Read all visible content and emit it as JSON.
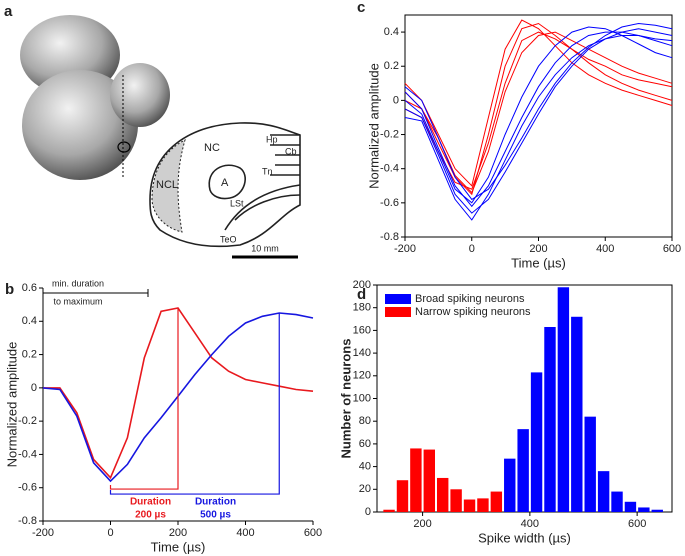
{
  "panel_a": {
    "label": "a",
    "regions": [
      "NC",
      "NCL",
      "A",
      "LSt",
      "Tn",
      "Hp",
      "Cb",
      "TeO"
    ],
    "scale_bar": "10 mm"
  },
  "chart_data": [
    {
      "type": "line",
      "panel_label": "b",
      "xlabel": "Time (µs)",
      "ylabel": "Normalized amplitude",
      "x": [
        -200,
        -150,
        -100,
        -50,
        0,
        50,
        100,
        150,
        200,
        250,
        300,
        350,
        400,
        450,
        500,
        550,
        600
      ],
      "series": [
        {
          "color": "#e8191e",
          "values": [
            0,
            0,
            -0.15,
            -0.43,
            -0.54,
            -0.3,
            0.18,
            0.46,
            0.48,
            0.33,
            0.18,
            0.1,
            0.05,
            0.03,
            0.01,
            -0.01,
            -0.02
          ]
        },
        {
          "color": "#1616e0",
          "values": [
            0,
            -0.01,
            -0.17,
            -0.45,
            -0.56,
            -0.46,
            -0.3,
            -0.18,
            -0.05,
            0.08,
            0.2,
            0.31,
            0.39,
            0.43,
            0.45,
            0.44,
            0.42
          ]
        }
      ],
      "xlim": [
        -200,
        600
      ],
      "xticks": [
        -200,
        0,
        200,
        400,
        600
      ],
      "ylim": [
        -0.8,
        0.6
      ],
      "yticks": [
        -0.8,
        -0.6,
        -0.4,
        -0.2,
        0,
        0.2,
        0.4,
        0.6
      ],
      "annotations": [
        "min. duration",
        "to maximum",
        "Duration",
        "200 µs",
        "Duration",
        "500 µs"
      ]
    },
    {
      "type": "line",
      "panel_label": "c",
      "xlabel": "Time (µs)",
      "ylabel": "Normalized amplitude",
      "x": [
        -200,
        -150,
        -100,
        -50,
        0,
        50,
        100,
        150,
        200,
        250,
        300,
        350,
        400,
        450,
        500,
        550,
        600
      ],
      "series": [
        {
          "color": "#ff0000",
          "values": [
            0.05,
            -0.05,
            -0.25,
            -0.45,
            -0.55,
            -0.2,
            0.2,
            0.42,
            0.45,
            0.38,
            0.3,
            0.22,
            0.15,
            0.1,
            0.06,
            0.03,
            0.0
          ]
        },
        {
          "color": "#ff0000",
          "values": [
            -0.05,
            -0.1,
            -0.3,
            -0.48,
            -0.52,
            -0.25,
            0.1,
            0.35,
            0.4,
            0.36,
            0.3,
            0.24,
            0.2,
            0.15,
            0.12,
            0.1,
            0.08
          ]
        },
        {
          "color": "#ff0000",
          "values": [
            0.1,
            0.0,
            -0.2,
            -0.4,
            -0.5,
            -0.1,
            0.3,
            0.47,
            0.42,
            0.32,
            0.22,
            0.15,
            0.1,
            0.06,
            0.03,
            0.0,
            -0.03
          ]
        },
        {
          "color": "#ff0000",
          "values": [
            0.0,
            -0.05,
            -0.22,
            -0.44,
            -0.54,
            -0.3,
            0.05,
            0.28,
            0.38,
            0.4,
            0.35,
            0.3,
            0.25,
            0.2,
            0.16,
            0.13,
            0.1
          ]
        },
        {
          "color": "#0000ff",
          "values": [
            0.05,
            -0.05,
            -0.28,
            -0.5,
            -0.62,
            -0.5,
            -0.3,
            -0.1,
            0.08,
            0.22,
            0.32,
            0.38,
            0.4,
            0.4,
            0.38,
            0.35,
            0.32
          ]
        },
        {
          "color": "#0000ff",
          "values": [
            -0.05,
            -0.1,
            -0.32,
            -0.55,
            -0.66,
            -0.58,
            -0.42,
            -0.25,
            -0.08,
            0.08,
            0.2,
            0.3,
            0.36,
            0.4,
            0.42,
            0.4,
            0.38
          ]
        },
        {
          "color": "#0000ff",
          "values": [
            0.0,
            -0.08,
            -0.3,
            -0.52,
            -0.6,
            -0.45,
            -0.2,
            0.02,
            0.2,
            0.32,
            0.4,
            0.43,
            0.42,
            0.38,
            0.33,
            0.28,
            0.25
          ]
        },
        {
          "color": "#0000ff",
          "values": [
            0.08,
            0.0,
            -0.22,
            -0.45,
            -0.58,
            -0.52,
            -0.38,
            -0.22,
            -0.05,
            0.1,
            0.22,
            0.31,
            0.38,
            0.43,
            0.45,
            0.44,
            0.42
          ]
        },
        {
          "color": "#0000ff",
          "values": [
            -0.1,
            -0.12,
            -0.35,
            -0.58,
            -0.7,
            -0.55,
            -0.35,
            -0.15,
            0.02,
            0.15,
            0.25,
            0.32,
            0.36,
            0.38,
            0.38,
            0.36,
            0.35
          ]
        }
      ],
      "xlim": [
        -200,
        600
      ],
      "xticks": [
        -200,
        0,
        200,
        400,
        600
      ],
      "ylim": [
        -0.8,
        0.5
      ],
      "yticks": [
        -0.8,
        -0.6,
        -0.4,
        -0.2,
        0,
        0.2,
        0.4
      ]
    },
    {
      "type": "histogram",
      "panel_label": "d",
      "xlabel": "Spike width (µs)",
      "ylabel": "Number of neurons",
      "series": [
        {
          "name": "Broad spiking neurons",
          "color": "#0000ff",
          "bins": [
            350,
            375,
            400,
            425,
            450,
            475,
            500,
            525,
            550,
            575,
            600,
            625,
            650
          ],
          "values": [
            47,
            73,
            123,
            163,
            198,
            172,
            84,
            36,
            18,
            9,
            4,
            2
          ]
        },
        {
          "name": "Narrow spiking neurons",
          "color": "#ff0000",
          "bins": [
            125,
            150,
            175,
            200,
            225,
            250,
            275,
            300,
            325,
            350
          ],
          "values": [
            2,
            28,
            56,
            55,
            30,
            20,
            11,
            12,
            18
          ]
        }
      ],
      "xlim": [
        115,
        665
      ],
      "xticks": [
        200,
        400,
        600
      ],
      "ylim": [
        0,
        200
      ],
      "yticks": [
        0,
        20,
        40,
        60,
        80,
        100,
        120,
        140,
        160,
        180,
        200
      ],
      "legend": "upper-left"
    }
  ]
}
